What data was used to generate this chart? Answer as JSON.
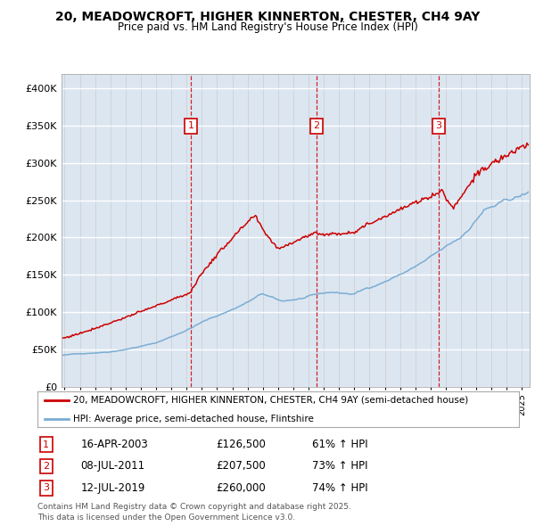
{
  "title1": "20, MEADOWCROFT, HIGHER KINNERTON, CHESTER, CH4 9AY",
  "title2": "Price paid vs. HM Land Registry's House Price Index (HPI)",
  "legend_line1": "20, MEADOWCROFT, HIGHER KINNERTON, CHESTER, CH4 9AY (semi-detached house)",
  "legend_line2": "HPI: Average price, semi-detached house, Flintshire",
  "red_color": "#cc0000",
  "blue_color": "#7aadd4",
  "background_color": "#dce6f1",
  "transactions": [
    {
      "label": "1",
      "date": "16-APR-2003",
      "price": 126500,
      "pct": "61%",
      "year": 2003.29
    },
    {
      "label": "2",
      "date": "08-JUL-2011",
      "price": 207500,
      "pct": "73%",
      "year": 2011.52
    },
    {
      "label": "3",
      "date": "12-JUL-2019",
      "price": 260000,
      "pct": "74%",
      "year": 2019.53
    }
  ],
  "footer": "Contains HM Land Registry data © Crown copyright and database right 2025.\nThis data is licensed under the Open Government Licence v3.0.",
  "ylim_max": 420000,
  "xlim_start": 1994.8,
  "xlim_end": 2025.5,
  "yticks": [
    0,
    50000,
    100000,
    150000,
    200000,
    250000,
    300000,
    350000,
    400000
  ]
}
